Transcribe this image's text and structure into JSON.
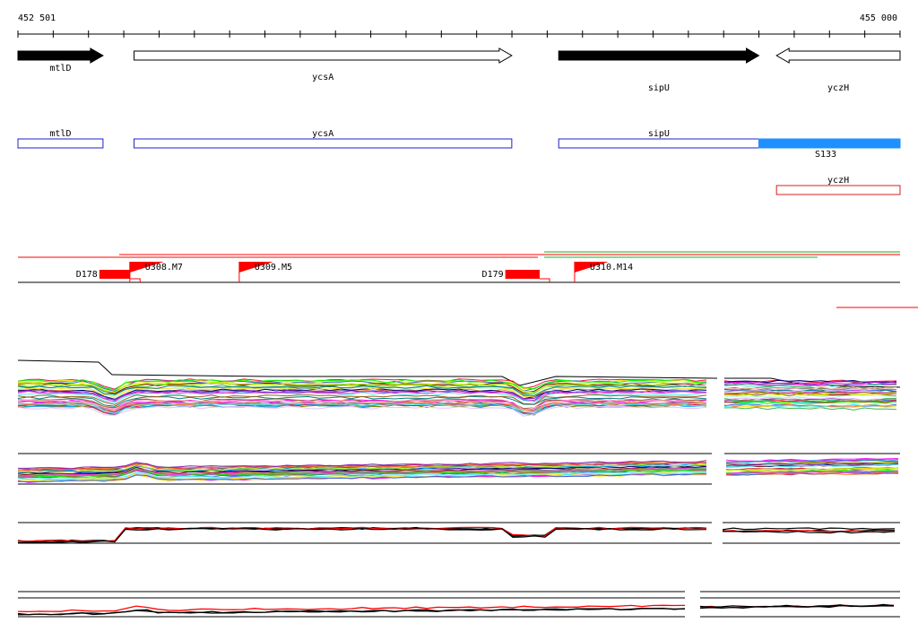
{
  "ruler": {
    "start_label": "452 501",
    "end_label": "455 000",
    "start_bp": 452501,
    "end_bp": 455000
  },
  "genes": [
    {
      "name": "mtlD",
      "start": 452501,
      "end": 452742,
      "strand": "+",
      "style": "filled"
    },
    {
      "name": "ycsA",
      "start": 452830,
      "end": 453900,
      "strand": "+",
      "style": "open"
    },
    {
      "name": "sipU",
      "start": 454033,
      "end": 454600,
      "strand": "+",
      "style": "filled"
    },
    {
      "name": "yczH",
      "start": 454650,
      "end": 455000,
      "strand": "-",
      "style": "open"
    }
  ],
  "transcripts": [
    {
      "name": "mtlD",
      "start": 452501,
      "end": 452742,
      "color": "#1f1fd0"
    },
    {
      "name": "ycsA",
      "start": 452830,
      "end": 453900,
      "color": "#1f1fd0"
    },
    {
      "name": "sipU",
      "start": 454033,
      "end": 454600,
      "color": "#1f1fd0"
    },
    {
      "name": "S133",
      "start": 454600,
      "end": 455000,
      "color": "#1e90ff",
      "filled": true
    },
    {
      "name": "yczH",
      "start": 454650,
      "end": 455000,
      "color": "#d02020"
    }
  ],
  "features": [
    {
      "name": "D178",
      "type": "terminator",
      "start": 452625,
      "end": 452720,
      "color": "#ff0000"
    },
    {
      "name": "U308.M7",
      "type": "promoter",
      "start": 452790,
      "end": 452880,
      "color": "#ff0000"
    },
    {
      "name": "U309.M5",
      "type": "promoter",
      "start": 453100,
      "end": 453190,
      "color": "#ff0000"
    },
    {
      "name": "D179",
      "type": "terminator",
      "start": 453775,
      "end": 453880,
      "color": "#ff0000"
    },
    {
      "name": "U310.M14",
      "type": "promoter",
      "start": 454050,
      "end": 454140,
      "color": "#ff0000"
    }
  ],
  "colors": {
    "feature_red": "#ff0000",
    "green_line": "#22aa22",
    "transcript_blue": "#1f1fd0",
    "s133_blue": "#1e90ff"
  }
}
